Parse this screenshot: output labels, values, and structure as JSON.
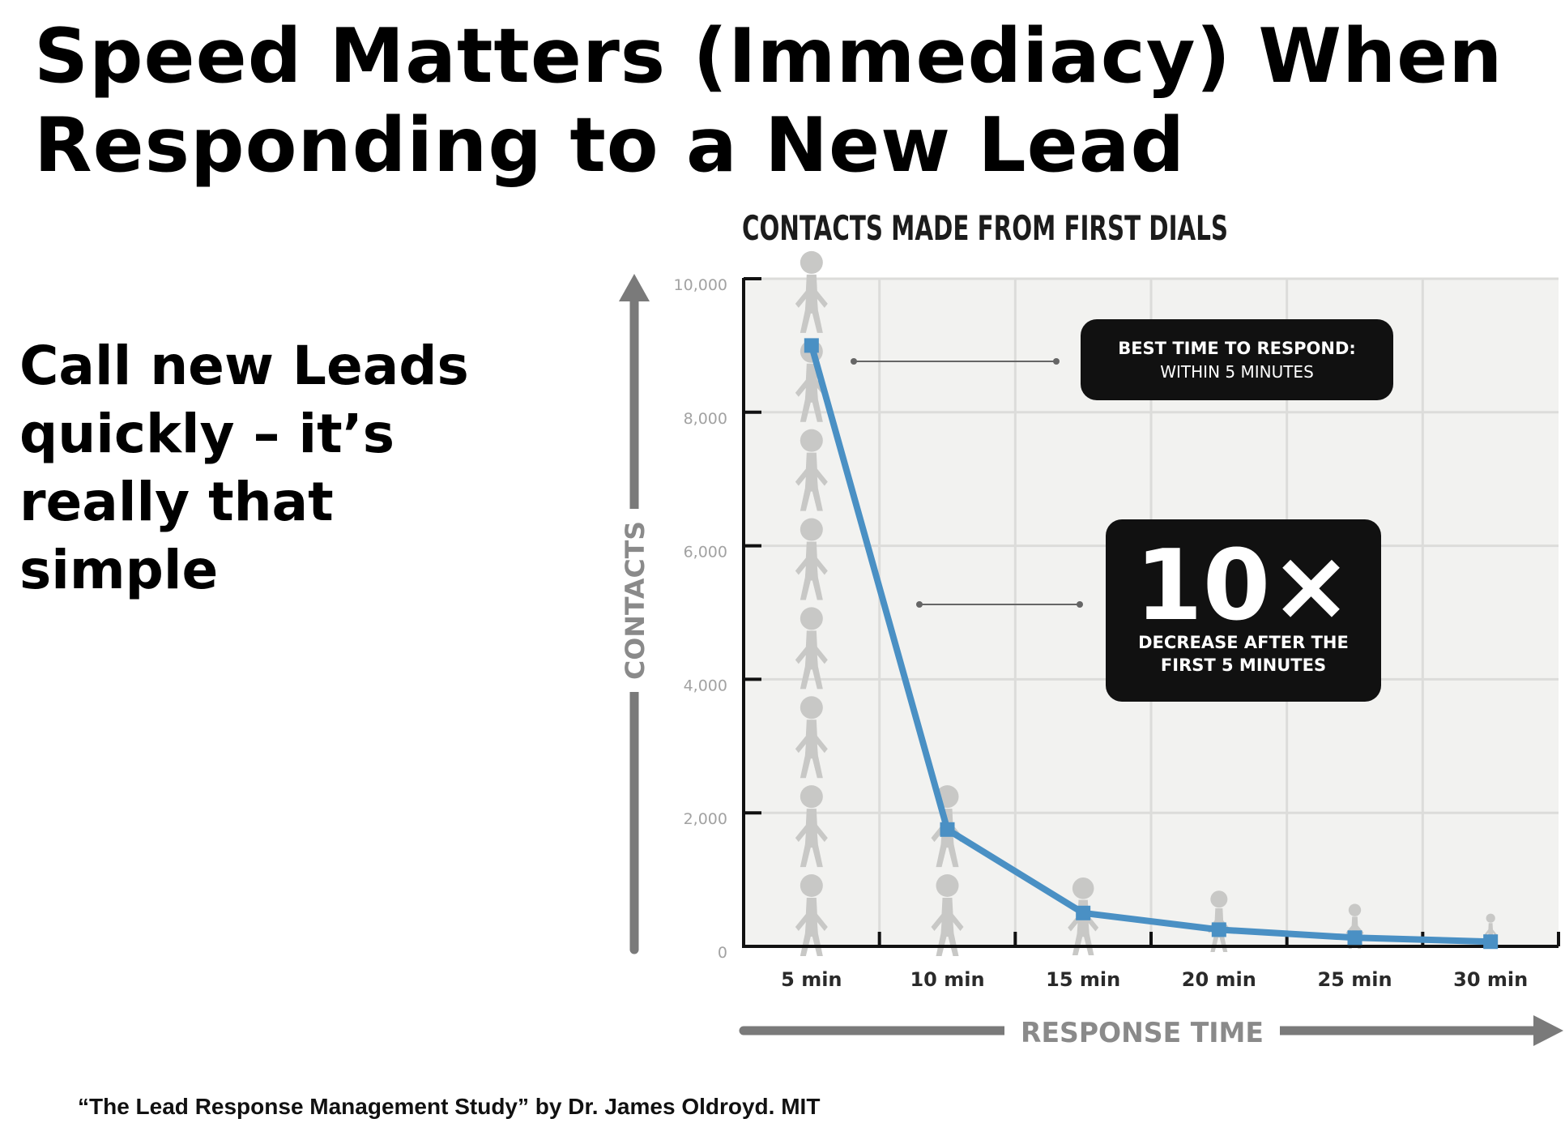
{
  "slide": {
    "title_line1": "Speed Matters (Immediacy) When",
    "title_line2": "Responding to a New Lead",
    "side_line1": "Call new Leads",
    "side_line2": "quickly – it’s",
    "side_line3": "really that",
    "side_line4": "simple",
    "citation": "“The Lead Response Management Study” by Dr. James Oldroyd. MIT"
  },
  "chart_data": {
    "type": "line",
    "title": "CONTACTS MADE FROM FIRST DIALS",
    "ylabel": "CONTACTS",
    "xlabel": "RESPONSE TIME",
    "categories": [
      "5 min",
      "10 min",
      "15 min",
      "20 min",
      "25 min",
      "30 min"
    ],
    "y_ticks": [
      "10,000",
      "8,000",
      "6,000",
      "4,000",
      "2,000",
      "0"
    ],
    "ylim": [
      0,
      10000
    ],
    "series": [
      {
        "values": [
          9000,
          1750,
          500,
          250,
          130,
          70
        ]
      }
    ],
    "grid": true,
    "line_color": "#4a90c4",
    "icon_color": "#c8c8c6",
    "plot_background": "#f2f2f0",
    "annotations": {
      "best_time_line1": "BEST TIME TO RESPOND:",
      "best_time_line2": "WITHIN 5 MINUTES",
      "big_number": "10×",
      "decrease_line1": "DECREASE AFTER THE",
      "decrease_line2": "FIRST 5 MINUTES"
    },
    "people_icons_per_category": [
      8,
      2,
      1,
      1,
      1,
      1
    ]
  }
}
